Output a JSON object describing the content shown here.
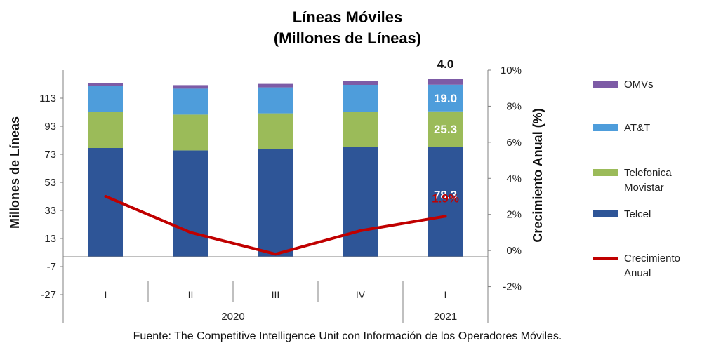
{
  "chart_data": {
    "type": "bar",
    "title": "Líneas Móviles",
    "subtitle": "(Millones de Líneas)",
    "ylabel": "Millones de Líneas",
    "y2label": "Crecimiento Anual (%)",
    "yticks": [
      "113",
      "93",
      "73",
      "53",
      "33",
      "13",
      "-7",
      "-27"
    ],
    "y2ticks": [
      "10%",
      "8%",
      "6%",
      "4%",
      "2%",
      "0%",
      "-2%"
    ],
    "categories": [
      "I",
      "II",
      "III",
      "IV",
      "I"
    ],
    "years": [
      {
        "label": "2020",
        "span": [
          0,
          3
        ]
      },
      {
        "label": "2021",
        "span": [
          4,
          4
        ]
      }
    ],
    "series": [
      {
        "name": "Telcel",
        "color": "#2E5597",
        "values": [
          77.5,
          75.8,
          76.5,
          78.2,
          78.3
        ]
      },
      {
        "name": "Telefonica Movistar",
        "color": "#9BBB59",
        "values": [
          25.5,
          25.5,
          25.7,
          25.3,
          25.3
        ]
      },
      {
        "name": "AT&T",
        "color": "#4E9DDB",
        "values": [
          19.0,
          18.5,
          18.5,
          19.0,
          19.0
        ]
      },
      {
        "name": "OMVs",
        "color": "#7D5BA6",
        "values": [
          2.0,
          2.5,
          2.5,
          2.5,
          4.0
        ]
      }
    ],
    "line": {
      "name": "Crecimiento Anual",
      "color": "#C00000",
      "values": [
        3.0,
        1.0,
        -0.2,
        1.1,
        1.9
      ]
    },
    "data_labels": [
      "78.3",
      "25.3",
      "19.0",
      "4.0",
      "1.9%"
    ],
    "legend_position": "right",
    "ylim": [
      -47,
      133
    ],
    "y2lim": [
      -4,
      10
    ],
    "source": "Fuente: The Competitive Intelligence Unit con Información de los Operadores Móviles."
  }
}
